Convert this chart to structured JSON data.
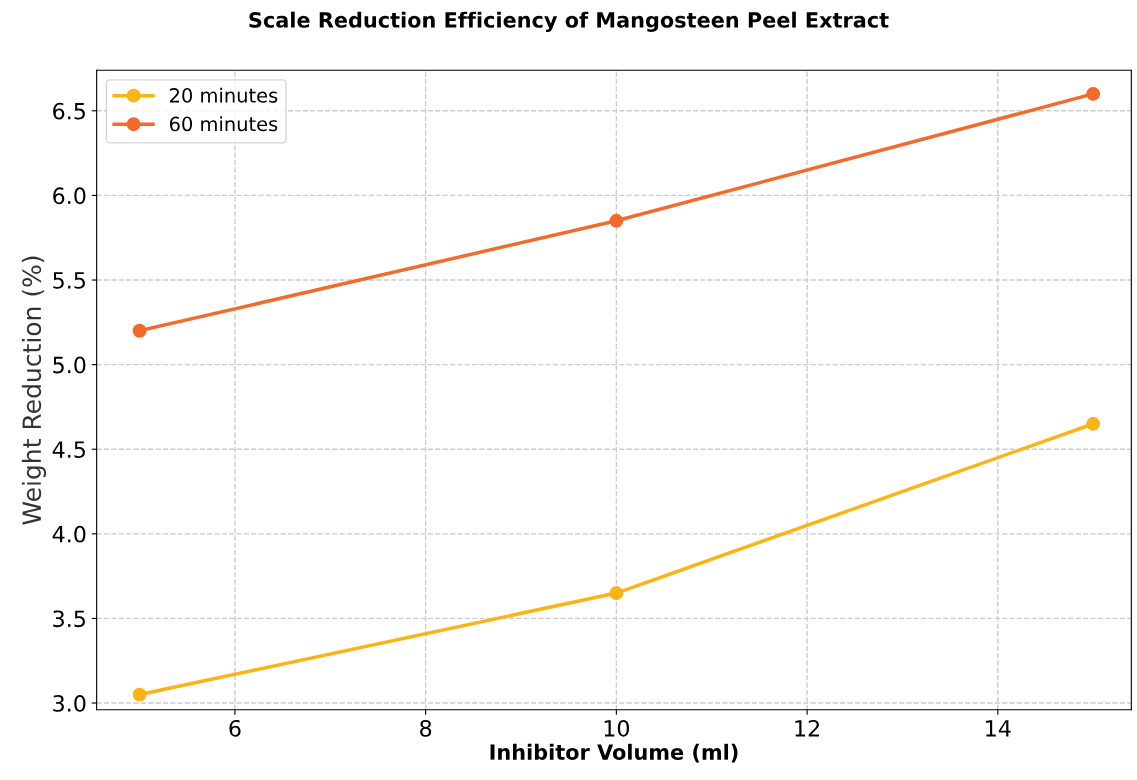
{
  "chart_data": {
    "type": "line",
    "title": "Scale Reduction Efficiency of Mangosteen Peel Extract",
    "xlabel": "Inhibitor Volume (ml)",
    "ylabel": "Weight Reduction (%)",
    "x": [
      5,
      10,
      15
    ],
    "series": [
      {
        "name": "20 minutes",
        "color": "#fbb416",
        "values": [
          3.05,
          3.65,
          4.65
        ]
      },
      {
        "name": "60 minutes",
        "color": "#f26b2c",
        "values": [
          5.2,
          5.85,
          6.6
        ]
      }
    ],
    "xlim": [
      4.55,
      15.4
    ],
    "ylim": [
      2.96,
      6.74
    ],
    "xticks": [
      6,
      8,
      10,
      12,
      14
    ],
    "yticks": [
      {
        "value": 3.0,
        "label": "3.0"
      },
      {
        "value": 3.5,
        "label": "3.5"
      },
      {
        "value": 4.0,
        "label": "4.0"
      },
      {
        "value": 4.5,
        "label": "4.5"
      },
      {
        "value": 5.0,
        "label": "5.0"
      },
      {
        "value": 5.5,
        "label": "5.5"
      },
      {
        "value": 6.0,
        "label": "6.0"
      },
      {
        "value": 6.5,
        "label": "6.5"
      }
    ],
    "grid": true,
    "legend": "top left",
    "marker": "circle",
    "line_style": "solid"
  }
}
